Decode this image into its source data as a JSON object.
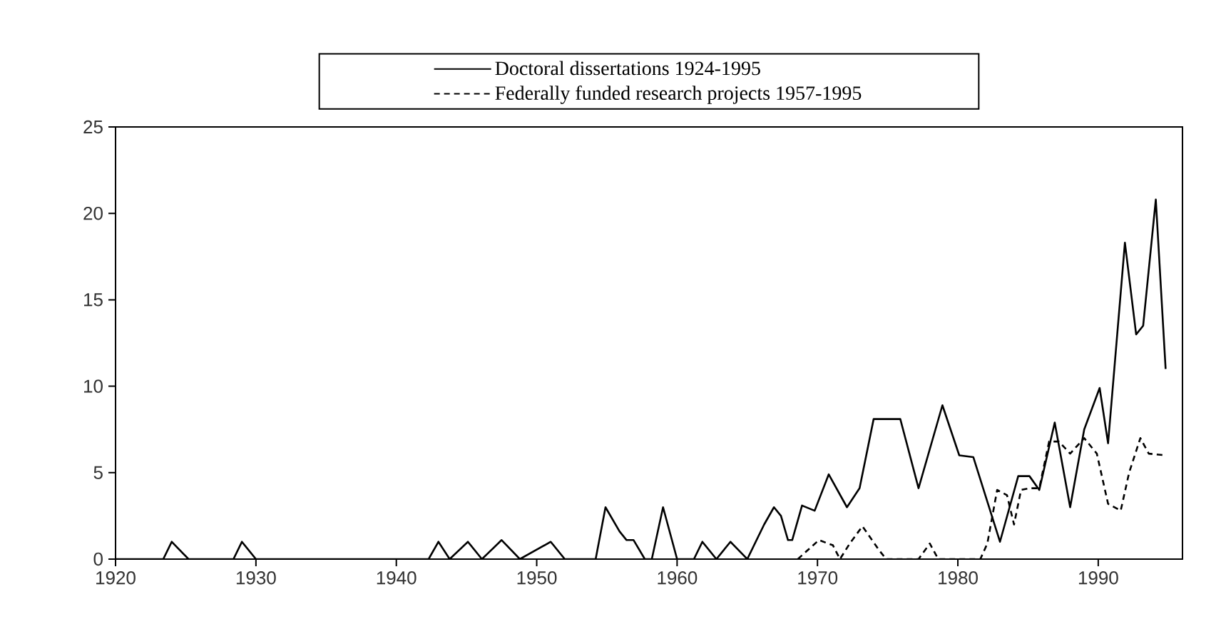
{
  "chart_data": {
    "type": "line",
    "xlim": [
      1920,
      1996
    ],
    "ylim": [
      0,
      25
    ],
    "xticks": [
      1920,
      1930,
      1940,
      1950,
      1960,
      1970,
      1980,
      1990
    ],
    "yticks": [
      0,
      5,
      10,
      15,
      20,
      25
    ],
    "legend": "top",
    "grid": false,
    "marker": "none",
    "series": [
      {
        "name": "Doctoral dissertations 1924-1995",
        "color": "#000000",
        "line_style": "solid",
        "x": [
          1920,
          1923.4,
          1924,
          1925.2,
          1928.4,
          1929,
          1930,
          1942.3,
          1943,
          1943.8,
          1945.1,
          1946.1,
          1947.5,
          1948.8,
          1951,
          1952,
          1954.2,
          1954.9,
          1955.9,
          1956.4,
          1956.9,
          1957.7,
          1958.2,
          1959,
          1960,
          1961.2,
          1961.8,
          1962.8,
          1963.8,
          1965,
          1966.2,
          1966.9,
          1967.4,
          1967.9,
          1968.2,
          1968.9,
          1969.8,
          1970.8,
          1972.1,
          1973,
          1974,
          1975.9,
          1977.2,
          1978.9,
          1980.1,
          1981.1,
          1983,
          1984.3,
          1985.1,
          1985.8,
          1986.9,
          1988,
          1989,
          1990.1,
          1990.7,
          1991.9,
          1992.7,
          1993.2,
          1994.1,
          1994.8
        ],
        "values": [
          0,
          0,
          1,
          0,
          0,
          1,
          0,
          0,
          1,
          0,
          1,
          0,
          1.1,
          0,
          1,
          0,
          0,
          3,
          1.6,
          1.1,
          1.1,
          0,
          0,
          3,
          0,
          0,
          1,
          0,
          1,
          0,
          2,
          3,
          2.5,
          1.1,
          1.1,
          3.1,
          2.8,
          4.9,
          3,
          4.1,
          8.1,
          8.1,
          4.1,
          8.9,
          6,
          5.9,
          1,
          4.8,
          4.8,
          4,
          7.9,
          3,
          7.5,
          9.9,
          6.7,
          18.3,
          13,
          13.5,
          20.8,
          11
        ]
      },
      {
        "name": "Federally funded research projects 1957-1995",
        "color": "#000000",
        "line_style": "dashed",
        "x": [
          1968.6,
          1970.1,
          1971.1,
          1971.6,
          1972.3,
          1973.2,
          1974.4,
          1974.9,
          1977.2,
          1978,
          1978.6,
          1981.6,
          1982.1,
          1982.8,
          1983.5,
          1984,
          1984.5,
          1985.1,
          1985.8,
          1986.5,
          1987.2,
          1988,
          1989,
          1989.9,
          1990.7,
          1991.6,
          1992.2,
          1993,
          1993.6,
          1994.8
        ],
        "values": [
          0,
          1.1,
          0.8,
          0,
          0.9,
          1.9,
          0.5,
          0,
          0,
          0.9,
          0,
          0,
          0.9,
          4,
          3.7,
          2,
          4,
          4.1,
          4.1,
          6.8,
          6.8,
          6.1,
          7,
          6.1,
          3.2,
          2.8,
          5,
          7,
          6.1,
          6
        ]
      }
    ]
  }
}
